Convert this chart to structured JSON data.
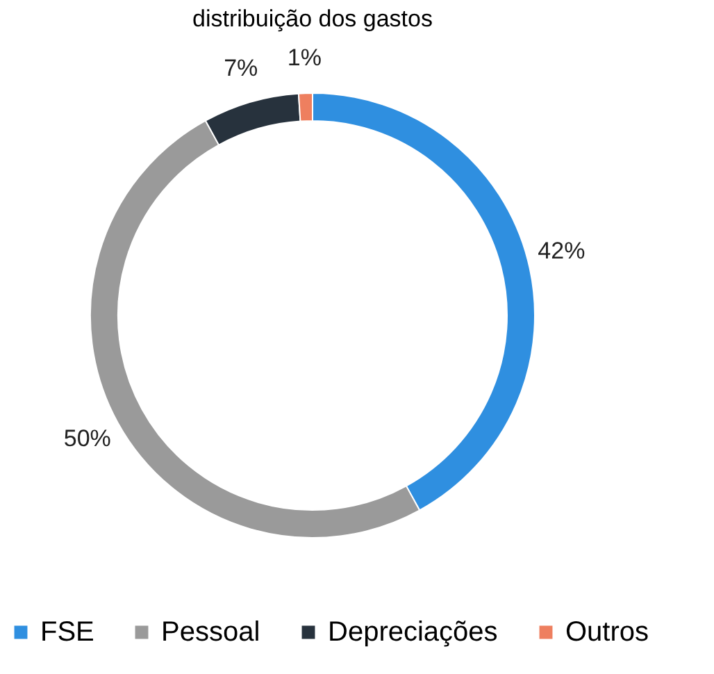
{
  "chart_data": {
    "type": "donut",
    "title": "distribuição dos gastos",
    "categories": [
      "FSE",
      "Pessoal",
      "Depreciações",
      "Outros"
    ],
    "values": [
      42,
      50,
      7,
      1
    ],
    "colors": [
      "#2f8fe0",
      "#9a9a9a",
      "#27323d",
      "#ee7f5f"
    ],
    "value_labels": [
      "42%",
      "50%",
      "7%",
      "1%"
    ],
    "legend": "bottom"
  }
}
